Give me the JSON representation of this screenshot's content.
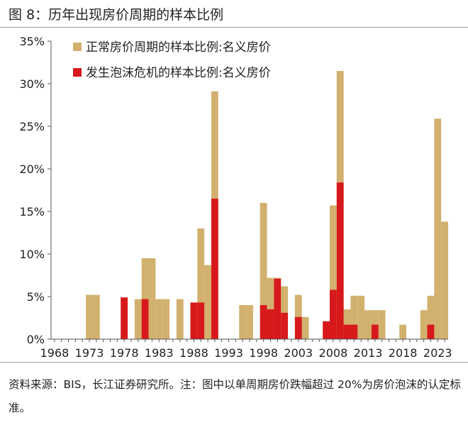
{
  "figure": {
    "title": "图 8：历年出现房价周期的样本比例",
    "source_note": "资料来源：BIS，长江证券研究所。注：图中以单周期房价跌幅超过 20%为房价泡沫的认定标准。"
  },
  "chart_data": {
    "type": "bar",
    "title": "",
    "xlabel": "",
    "ylabel": "",
    "ylim": [
      0,
      0.35
    ],
    "y_ticks": [
      0,
      0.05,
      0.1,
      0.15,
      0.2,
      0.25,
      0.3,
      0.35
    ],
    "y_tick_labels": [
      "0%",
      "5%",
      "10%",
      "15%",
      "20%",
      "25%",
      "30%",
      "35%"
    ],
    "x_tick_labels": [
      "1968",
      "1973",
      "1978",
      "1983",
      "1988",
      "1993",
      "1998",
      "2003",
      "2008",
      "2013",
      "2018",
      "2023"
    ],
    "categories": [
      1968,
      1969,
      1970,
      1971,
      1972,
      1973,
      1974,
      1975,
      1976,
      1977,
      1978,
      1979,
      1980,
      1981,
      1982,
      1983,
      1984,
      1985,
      1986,
      1987,
      1988,
      1989,
      1990,
      1991,
      1992,
      1993,
      1994,
      1995,
      1996,
      1997,
      1998,
      1999,
      2000,
      2001,
      2002,
      2003,
      2004,
      2005,
      2006,
      2007,
      2008,
      2009,
      2010,
      2011,
      2012,
      2013,
      2014,
      2015,
      2016,
      2017,
      2018,
      2019,
      2020,
      2021,
      2022,
      2023,
      2024
    ],
    "grid": false,
    "legend_position": "top-left",
    "series": [
      {
        "name": "正常房价周期的样本比例:名义房价",
        "color": "#D2B06E",
        "values": [
          0,
          0,
          0,
          0,
          0,
          0.052,
          0.052,
          0,
          0,
          0,
          0.049,
          0,
          0.047,
          0.095,
          0.095,
          0.047,
          0.047,
          0,
          0.047,
          0,
          0.043,
          0.13,
          0.087,
          0.291,
          0,
          0,
          0,
          0.04,
          0.04,
          0,
          0.16,
          0.072,
          0.072,
          0.062,
          0,
          0.052,
          0.026,
          0,
          0,
          0,
          0.157,
          0.315,
          0.035,
          0.051,
          0.051,
          0.034,
          0.034,
          0.034,
          0,
          0,
          0.017,
          0,
          0,
          0.034,
          0.051,
          0.259,
          0.138
        ]
      },
      {
        "name": "发生泡沫危机的样本比例:名义房价",
        "color": "#D7191C",
        "values": [
          0,
          0,
          0,
          0,
          0,
          0,
          0,
          0,
          0,
          0,
          0.049,
          0,
          0,
          0.047,
          0,
          0,
          0,
          0,
          0,
          0,
          0.043,
          0.043,
          0,
          0.165,
          0,
          0,
          0,
          0,
          0,
          0,
          0.04,
          0.035,
          0.071,
          0.031,
          0,
          0.026,
          0,
          0,
          0,
          0.021,
          0.058,
          0.184,
          0.017,
          0.017,
          0,
          0,
          0.017,
          0,
          0,
          0,
          0,
          0,
          0,
          0,
          0.017,
          0,
          0
        ]
      }
    ]
  }
}
